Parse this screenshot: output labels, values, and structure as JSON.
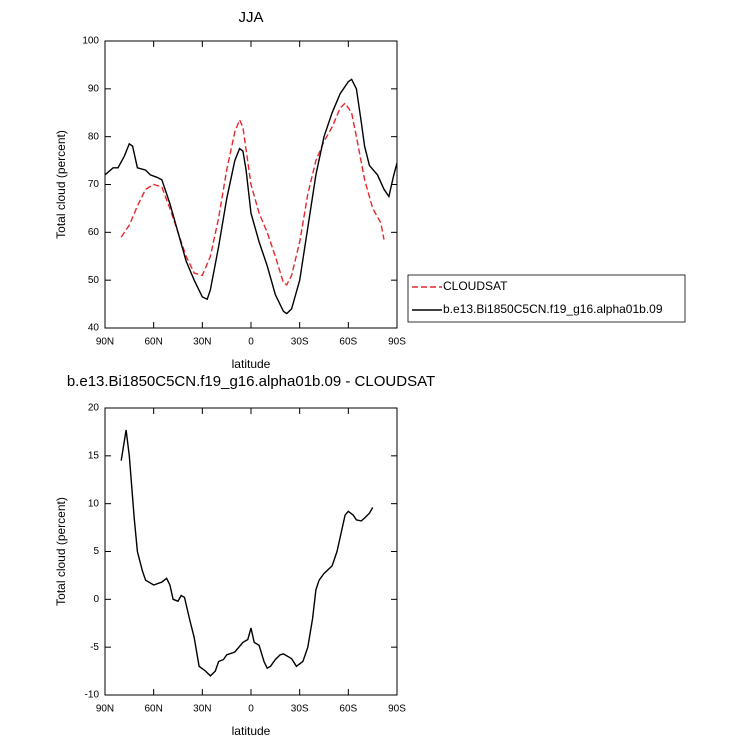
{
  "chart_data": [
    {
      "type": "line",
      "title": "JJA",
      "xlabel": "latitude",
      "ylabel": "Total cloud (percent)",
      "xlim": [
        90,
        -90
      ],
      "xticks": [
        {
          "value": 90,
          "label": "90N"
        },
        {
          "value": 60,
          "label": "60N"
        },
        {
          "value": 30,
          "label": "30N"
        },
        0,
        {
          "value": -30,
          "label": "30S"
        },
        {
          "value": -60,
          "label": "60S"
        },
        {
          "value": -90,
          "label": "90S"
        }
      ],
      "ylim": [
        40,
        100
      ],
      "yticks": [
        40,
        50,
        60,
        70,
        80,
        90,
        100
      ],
      "series": [
        {
          "name": "CLOUDSAT",
          "color": "#e8262b",
          "dash": true,
          "x": [
            80,
            75,
            70,
            65,
            60,
            55,
            50,
            45,
            40,
            35,
            30,
            25,
            20,
            15,
            10,
            7,
            5,
            0,
            -5,
            -10,
            -15,
            -20,
            -22,
            -25,
            -30,
            -35,
            -40,
            -45,
            -50,
            -55,
            -58,
            -62,
            -65,
            -70,
            -75,
            -80,
            -82
          ],
          "values": [
            59,
            61.5,
            65.5,
            69,
            70,
            69.5,
            65,
            60,
            55,
            51.5,
            51,
            55,
            63,
            73,
            81,
            83.5,
            82,
            70,
            64,
            60,
            55,
            49.5,
            49,
            51,
            58,
            68,
            75,
            79,
            82,
            86,
            87,
            85,
            80,
            71,
            65,
            62,
            58.5
          ]
        },
        {
          "name": "b.e13.Bi1850C5CN.f19_g16.alpha01b.09",
          "color": "#000000",
          "dash": false,
          "x": [
            90,
            85,
            82,
            78,
            75,
            73,
            70,
            65,
            62,
            58,
            55,
            50,
            45,
            40,
            35,
            30,
            27,
            25,
            20,
            15,
            10,
            7,
            5,
            3,
            0,
            -5,
            -10,
            -15,
            -20,
            -22,
            -25,
            -30,
            -35,
            -40,
            -45,
            -50,
            -55,
            -60,
            -62,
            -65,
            -68,
            -70,
            -73,
            -78,
            -82,
            -85,
            -88,
            -90
          ],
          "values": [
            72,
            73.5,
            73.5,
            76,
            78.5,
            78,
            73.5,
            73,
            72,
            71.5,
            71,
            66,
            60,
            54,
            50,
            46.5,
            46,
            48,
            57,
            67,
            75,
            77.5,
            77,
            73,
            64,
            58,
            53,
            47,
            43.5,
            43,
            44,
            50,
            61,
            72,
            80,
            85,
            89,
            91.5,
            92,
            90,
            83,
            78,
            74,
            72,
            69,
            67.5,
            72,
            74.5
          ]
        }
      ]
    },
    {
      "type": "line",
      "title": "b.e13.Bi1850C5CN.f19_g16.alpha01b.09 - CLOUDSAT",
      "xlabel": "latitude",
      "ylabel": "Total cloud (percent)",
      "xlim": [
        90,
        -90
      ],
      "xticks": [
        {
          "value": 90,
          "label": "90N"
        },
        {
          "value": 60,
          "label": "60N"
        },
        {
          "value": 30,
          "label": "30N"
        },
        0,
        {
          "value": -30,
          "label": "30S"
        },
        {
          "value": -60,
          "label": "60S"
        },
        {
          "value": -90,
          "label": "90S"
        }
      ],
      "ylim": [
        -10,
        20
      ],
      "yticks": [
        -10,
        -5,
        0,
        5,
        10,
        15,
        20
      ],
      "series": [
        {
          "color": "#000000",
          "dash": false,
          "x": [
            80,
            77,
            75,
            72,
            70,
            67,
            65,
            60,
            55,
            52,
            50,
            48,
            45,
            43,
            41,
            38,
            35,
            32,
            28,
            25,
            22,
            20,
            17,
            15,
            10,
            5,
            2,
            0,
            -2,
            -5,
            -8,
            -10,
            -12,
            -15,
            -18,
            -20,
            -25,
            -28,
            -32,
            -35,
            -38,
            -40,
            -42,
            -45,
            -50,
            -53,
            -55,
            -58,
            -60,
            -63,
            -65,
            -68,
            -70,
            -73,
            -75
          ],
          "values": [
            14.5,
            17.7,
            15,
            8.5,
            5,
            3,
            2,
            1.5,
            1.8,
            2.2,
            1.5,
            0,
            -0.2,
            0.4,
            0.2,
            -2,
            -4,
            -7,
            -7.5,
            -8,
            -7.5,
            -6.5,
            -6.3,
            -5.8,
            -5.5,
            -4.5,
            -4.2,
            -3,
            -4.5,
            -4.8,
            -6.5,
            -7.2,
            -7,
            -6.3,
            -5.8,
            -5.7,
            -6.2,
            -7,
            -6.5,
            -5,
            -2,
            1,
            2,
            2.7,
            3.5,
            5,
            6.5,
            8.8,
            9.2,
            8.8,
            8.3,
            8.2,
            8.5,
            9,
            9.6
          ]
        }
      ]
    }
  ]
}
